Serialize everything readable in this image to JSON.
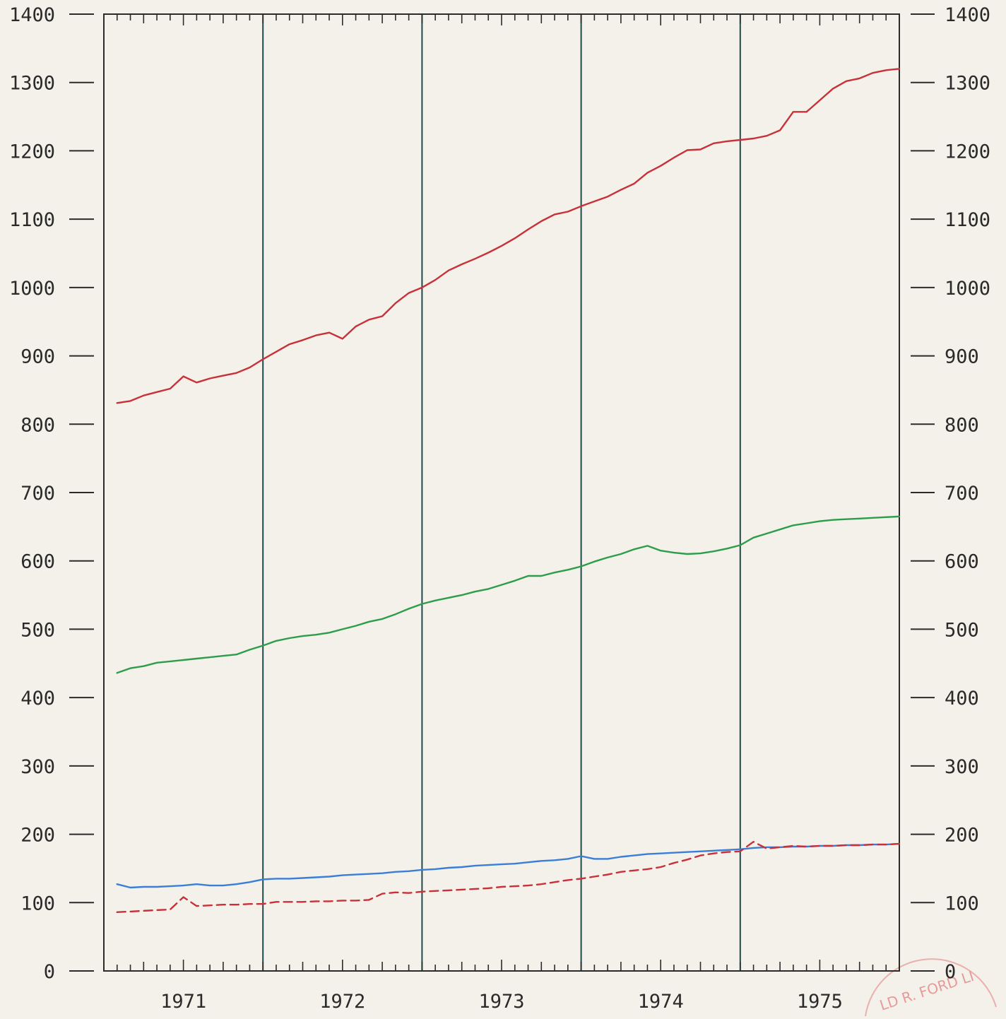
{
  "chart_data": {
    "type": "line",
    "title": "",
    "xlabel": "",
    "ylabel": "",
    "ylim": [
      0,
      1400
    ],
    "xlim": [
      1970.5,
      1975.5
    ],
    "grid": "vertical lines at year boundaries",
    "y_ticks": [
      "0",
      "100",
      "200",
      "300",
      "400",
      "500",
      "600",
      "700",
      "800",
      "900",
      "1000",
      "1100",
      "1200",
      "1300",
      "1400"
    ],
    "x_tick_labels": [
      "1971",
      "1972",
      "1973",
      "1974",
      "1975"
    ],
    "x_label_positions": [
      1971.0,
      1972.0,
      1973.0,
      1974.0,
      1975.0
    ],
    "year_boundaries": [
      1971.5,
      1972.5,
      1973.5,
      1974.5
    ],
    "x": [
      1970.583,
      1970.667,
      1970.75,
      1970.833,
      1970.917,
      1971.0,
      1971.083,
      1971.167,
      1971.25,
      1971.333,
      1971.417,
      1971.5,
      1971.583,
      1971.667,
      1971.75,
      1971.833,
      1971.917,
      1972.0,
      1972.083,
      1972.167,
      1972.25,
      1972.333,
      1972.417,
      1972.5,
      1972.583,
      1972.667,
      1972.75,
      1972.833,
      1972.917,
      1973.0,
      1973.083,
      1973.167,
      1973.25,
      1973.333,
      1973.417,
      1973.5,
      1973.583,
      1973.667,
      1973.75,
      1973.833,
      1973.917,
      1974.0,
      1974.083,
      1974.167,
      1974.25,
      1974.333,
      1974.417,
      1974.5,
      1974.583,
      1974.667,
      1974.75,
      1974.833,
      1974.917,
      1975.0,
      1975.083,
      1975.167,
      1975.25,
      1975.333,
      1975.417,
      1975.5
    ],
    "series": [
      {
        "color": "#c8303a",
        "style": "solid",
        "values": [
          831,
          834,
          842,
          847,
          852,
          870,
          861,
          867,
          871,
          875,
          883,
          895,
          906,
          917,
          923,
          930,
          934,
          925,
          943,
          953,
          958,
          977,
          992,
          1000,
          1011,
          1025,
          1034,
          1042,
          1051,
          1061,
          1072,
          1085,
          1097,
          1107,
          1111,
          1119,
          1126,
          1133,
          1143,
          1152,
          1168,
          1178,
          1190,
          1201,
          1202,
          1211,
          1214,
          1216,
          1218,
          1222,
          1230,
          1257,
          1257,
          1274,
          1291,
          1302,
          1306,
          1314,
          1318,
          1320
        ]
      },
      {
        "color": "#2e9d4b",
        "style": "solid",
        "values": [
          436,
          443,
          446,
          451,
          453,
          455,
          457,
          459,
          461,
          463,
          470,
          476,
          483,
          487,
          490,
          492,
          495,
          500,
          505,
          511,
          515,
          522,
          530,
          537,
          542,
          546,
          550,
          555,
          559,
          565,
          571,
          578,
          578,
          583,
          587,
          592,
          599,
          605,
          610,
          617,
          622,
          615,
          612,
          610,
          611,
          614,
          618,
          623,
          634,
          640,
          646,
          652,
          655,
          658,
          660,
          661,
          662,
          663,
          664,
          665
        ]
      },
      {
        "color": "#3b7ed8",
        "style": "solid",
        "values": [
          127,
          122,
          123,
          123,
          124,
          125,
          127,
          125,
          125,
          127,
          130,
          134,
          135,
          135,
          136,
          137,
          138,
          140,
          141,
          142,
          143,
          145,
          146,
          148,
          149,
          151,
          152,
          154,
          155,
          156,
          157,
          159,
          161,
          162,
          164,
          168,
          164,
          164,
          167,
          169,
          171,
          172,
          173,
          174,
          175,
          176,
          177,
          178,
          180,
          181,
          181,
          182,
          182,
          183,
          183,
          184,
          184,
          185,
          185,
          186
        ]
      },
      {
        "color": "#c8303a",
        "style": "dashed",
        "values": [
          86,
          87,
          88,
          89,
          90,
          108,
          95,
          96,
          97,
          97,
          98,
          98,
          101,
          101,
          101,
          102,
          102,
          103,
          103,
          104,
          113,
          115,
          114,
          116,
          117,
          118,
          119,
          120,
          121,
          123,
          124,
          125,
          127,
          130,
          133,
          135,
          138,
          141,
          145,
          147,
          149,
          152,
          158,
          163,
          169,
          172,
          174,
          175,
          189,
          179,
          181,
          183,
          182,
          183,
          183,
          184,
          184,
          185,
          185,
          186
        ]
      }
    ]
  }
}
